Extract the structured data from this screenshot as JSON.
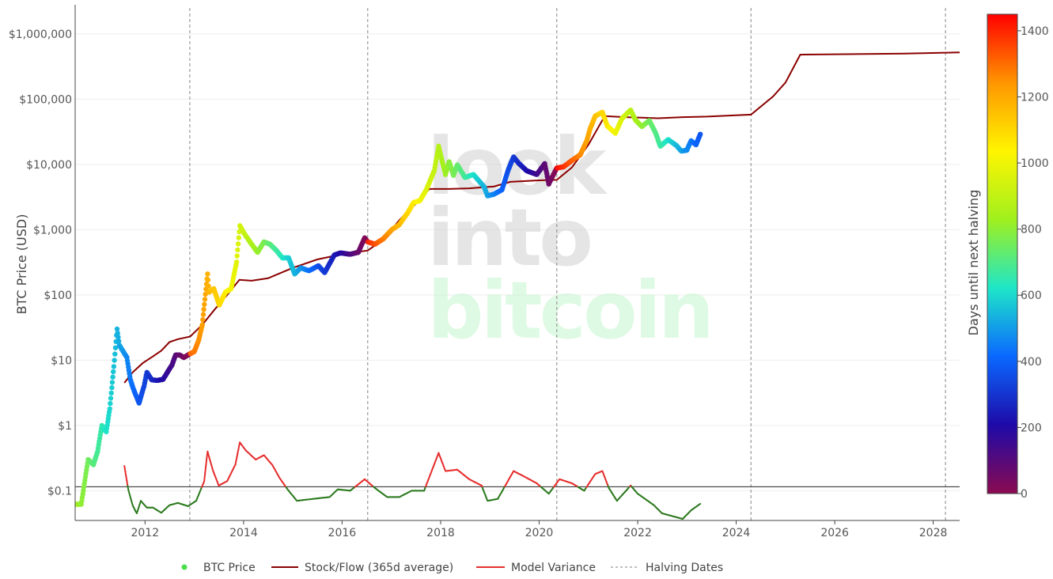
{
  "chart_data": {
    "type": "scatter",
    "ylabel": "BTC Price (USD)",
    "y_scale": "log",
    "ylim": [
      0.035,
      2500000
    ],
    "xlim": [
      "2010-08-01",
      "2028-07-15"
    ],
    "x_ticks": [
      "2012",
      "2014",
      "2016",
      "2018",
      "2020",
      "2022",
      "2024",
      "2026",
      "2028"
    ],
    "y_ticks": [
      {
        "value": 1000000,
        "label": "$1,000,000"
      },
      {
        "value": 100000,
        "label": "$100,000"
      },
      {
        "value": 10000,
        "label": "$10,000"
      },
      {
        "value": 1000,
        "label": "$1,000"
      },
      {
        "value": 100,
        "label": "$100"
      },
      {
        "value": 10,
        "label": "$10"
      },
      {
        "value": 1,
        "label": "$1"
      },
      {
        "value": 0.1,
        "label": "$0.1"
      }
    ],
    "reference_line": 0.115,
    "watermark": [
      "look",
      "into",
      "bitcoin"
    ],
    "colorbar": {
      "title": "Days until next halving",
      "min": 0,
      "max": 1450,
      "ticks": [
        "1400",
        "1200",
        "1000",
        "800",
        "600",
        "400",
        "200",
        "0"
      ],
      "tick_values": [
        1400,
        1200,
        1000,
        800,
        600,
        400,
        200,
        0
      ],
      "colors": [
        "#8b0a50",
        "#1e0aa8",
        "#0a68ff",
        "#1ee6c8",
        "#a0f01e",
        "#fff500",
        "#ff9600",
        "#ff0000"
      ]
    },
    "halving_dates": [
      "2012-11-28",
      "2016-07-09",
      "2020-05-11",
      "2024-04-20",
      "2028-04-01"
    ],
    "series": [
      {
        "name": "BTC Price",
        "color_by": "days_until_next_halving",
        "points": [
          [
            "2010-08-01",
            0.062
          ],
          [
            "2010-09-15",
            0.062
          ],
          [
            "2010-10-01",
            0.1
          ],
          [
            "2010-11-05",
            0.3
          ],
          [
            "2010-12-15",
            0.25
          ],
          [
            "2011-01-15",
            0.4
          ],
          [
            "2011-02-15",
            1.0
          ],
          [
            "2011-03-20",
            0.8
          ],
          [
            "2011-04-15",
            1.8
          ],
          [
            "2011-05-15",
            8.0
          ],
          [
            "2011-06-08",
            30.0
          ],
          [
            "2011-06-25",
            17.0
          ],
          [
            "2011-07-20",
            14.0
          ],
          [
            "2011-08-20",
            11.0
          ],
          [
            "2011-09-15",
            5.0
          ],
          [
            "2011-10-10",
            3.5
          ],
          [
            "2011-11-18",
            2.2
          ],
          [
            "2011-12-25",
            4.0
          ],
          [
            "2012-01-15",
            6.5
          ],
          [
            "2012-02-20",
            5.0
          ],
          [
            "2012-04-01",
            4.9
          ],
          [
            "2012-05-15",
            5.1
          ],
          [
            "2012-06-15",
            6.5
          ],
          [
            "2012-07-20",
            8.5
          ],
          [
            "2012-08-15",
            12.0
          ],
          [
            "2012-09-15",
            12.0
          ],
          [
            "2012-10-15",
            11.0
          ],
          [
            "2012-11-28",
            12.5
          ],
          [
            "2012-12-31",
            13.5
          ],
          [
            "2013-02-01",
            20.0
          ],
          [
            "2013-03-01",
            35.0
          ],
          [
            "2013-04-09",
            210.0
          ],
          [
            "2013-04-20",
            110.0
          ],
          [
            "2013-05-25",
            125.0
          ],
          [
            "2013-07-05",
            70.0
          ],
          [
            "2013-08-20",
            110.0
          ],
          [
            "2013-10-01",
            125.0
          ],
          [
            "2013-11-10",
            320.0
          ],
          [
            "2013-12-04",
            1150.0
          ],
          [
            "2014-01-10",
            850.0
          ],
          [
            "2014-03-01",
            600.0
          ],
          [
            "2014-04-15",
            450.0
          ],
          [
            "2014-06-01",
            650.0
          ],
          [
            "2014-07-15",
            600.0
          ],
          [
            "2014-09-01",
            480.0
          ],
          [
            "2014-10-15",
            370.0
          ],
          [
            "2014-12-01",
            370.0
          ],
          [
            "2015-01-15",
            210.0
          ],
          [
            "2015-03-01",
            260.0
          ],
          [
            "2015-05-01",
            235.0
          ],
          [
            "2015-07-10",
            280.0
          ],
          [
            "2015-08-25",
            220.0
          ],
          [
            "2015-11-05",
            410.0
          ],
          [
            "2015-12-20",
            440.0
          ],
          [
            "2016-03-01",
            420.0
          ],
          [
            "2016-05-01",
            450.0
          ],
          [
            "2016-06-17",
            750.0
          ],
          [
            "2016-07-09",
            650.0
          ],
          [
            "2016-09-01",
            600.0
          ],
          [
            "2016-11-01",
            720.0
          ],
          [
            "2017-01-05",
            1000.0
          ],
          [
            "2017-03-01",
            1200.0
          ],
          [
            "2017-05-01",
            1800.0
          ],
          [
            "2017-06-15",
            2600.0
          ],
          [
            "2017-08-01",
            2800.0
          ],
          [
            "2017-09-15",
            4000.0
          ],
          [
            "2017-11-15",
            8000.0
          ],
          [
            "2017-12-17",
            19000.0
          ],
          [
            "2018-02-06",
            7000.0
          ],
          [
            "2018-03-05",
            11000.0
          ],
          [
            "2018-04-06",
            6800.0
          ],
          [
            "2018-05-05",
            9800.0
          ],
          [
            "2018-07-01",
            6300.0
          ],
          [
            "2018-09-01",
            7000.0
          ],
          [
            "2018-11-20",
            4500.0
          ],
          [
            "2018-12-15",
            3300.0
          ],
          [
            "2019-02-01",
            3500.0
          ],
          [
            "2019-04-01",
            4100.0
          ],
          [
            "2019-05-15",
            8000.0
          ],
          [
            "2019-06-26",
            13000.0
          ],
          [
            "2019-08-01",
            10500.0
          ],
          [
            "2019-10-01",
            8000.0
          ],
          [
            "2019-12-15",
            7000.0
          ],
          [
            "2020-02-12",
            10300.0
          ],
          [
            "2020-03-13",
            5000.0
          ],
          [
            "2020-05-11",
            8800.0
          ],
          [
            "2020-07-01",
            9200.0
          ],
          [
            "2020-09-01",
            11500.0
          ],
          [
            "2020-11-01",
            14000.0
          ],
          [
            "2020-12-20",
            23000.0
          ],
          [
            "2021-01-15",
            36000.0
          ],
          [
            "2021-02-20",
            55000.0
          ],
          [
            "2021-04-14",
            63000.0
          ],
          [
            "2021-05-20",
            39000.0
          ],
          [
            "2021-07-20",
            30000.0
          ],
          [
            "2021-09-05",
            50000.0
          ],
          [
            "2021-11-10",
            68000.0
          ],
          [
            "2021-12-15",
            48000.0
          ],
          [
            "2022-02-01",
            38000.0
          ],
          [
            "2022-03-28",
            47000.0
          ],
          [
            "2022-05-15",
            30000.0
          ],
          [
            "2022-06-18",
            19000.0
          ],
          [
            "2022-08-15",
            24000.0
          ],
          [
            "2022-10-15",
            19500.0
          ],
          [
            "2022-11-21",
            16000.0
          ],
          [
            "2023-01-01",
            16500.0
          ],
          [
            "2023-02-01",
            23000.0
          ],
          [
            "2023-03-10",
            20000.0
          ],
          [
            "2023-04-10",
            29000.0
          ]
        ]
      },
      {
        "name": "Stock/Flow (365d average)",
        "color": "#8b0000",
        "points": [
          [
            "2011-08-01",
            4.5
          ],
          [
            "2011-10-01",
            6.5
          ],
          [
            "2011-12-15",
            9.0
          ],
          [
            "2012-03-01",
            11.5
          ],
          [
            "2012-05-01",
            14.0
          ],
          [
            "2012-07-01",
            19.0
          ],
          [
            "2012-09-01",
            21.0
          ],
          [
            "2012-12-01",
            23.0
          ],
          [
            "2013-03-01",
            35.0
          ],
          [
            "2013-06-01",
            60.0
          ],
          [
            "2013-09-01",
            100.0
          ],
          [
            "2013-12-01",
            170.0
          ],
          [
            "2014-03-01",
            165.0
          ],
          [
            "2014-07-01",
            180.0
          ],
          [
            "2015-01-01",
            260.0
          ],
          [
            "2015-07-01",
            350.0
          ],
          [
            "2016-01-01",
            420.0
          ],
          [
            "2016-07-09",
            480.0
          ],
          [
            "2016-11-01",
            700.0
          ],
          [
            "2017-03-01",
            1400.0
          ],
          [
            "2017-07-01",
            2500.0
          ],
          [
            "2017-10-10",
            4200.0
          ],
          [
            "2018-03-01",
            4200.0
          ],
          [
            "2018-08-01",
            4300.0
          ],
          [
            "2019-02-01",
            4600.0
          ],
          [
            "2019-06-01",
            5400.0
          ],
          [
            "2020-01-01",
            5700.0
          ],
          [
            "2020-05-11",
            5800.0
          ],
          [
            "2020-09-01",
            9000.0
          ],
          [
            "2021-01-01",
            20000.0
          ],
          [
            "2021-05-01",
            55000.0
          ],
          [
            "2021-10-01",
            53000.0
          ],
          [
            "2022-02-01",
            52000.0
          ],
          [
            "2022-06-01",
            51000.0
          ],
          [
            "2022-12-01",
            53000.0
          ],
          [
            "2023-06-01",
            54000.0
          ],
          [
            "2024-04-20",
            58000.0
          ],
          [
            "2024-10-01",
            110000.0
          ],
          [
            "2025-01-01",
            180000.0
          ],
          [
            "2025-04-20",
            480000.0
          ],
          [
            "2026-06-01",
            490000.0
          ],
          [
            "2027-06-01",
            500000.0
          ],
          [
            "2028-07-15",
            520000.0
          ]
        ]
      },
      {
        "name": "Model Variance",
        "color_above": "#e62e2e",
        "color_below": "#2d7a1f",
        "points": [
          [
            "2011-08-01",
            0.24
          ],
          [
            "2011-09-01",
            0.1
          ],
          [
            "2011-10-01",
            0.06
          ],
          [
            "2011-11-01",
            0.045
          ],
          [
            "2011-12-01",
            0.07
          ],
          [
            "2012-01-15",
            0.055
          ],
          [
            "2012-03-01",
            0.055
          ],
          [
            "2012-05-01",
            0.046
          ],
          [
            "2012-07-01",
            0.06
          ],
          [
            "2012-09-01",
            0.065
          ],
          [
            "2012-11-15",
            0.058
          ],
          [
            "2013-01-15",
            0.07
          ],
          [
            "2013-03-15",
            0.14
          ],
          [
            "2013-04-09",
            0.4
          ],
          [
            "2013-05-20",
            0.2
          ],
          [
            "2013-07-01",
            0.12
          ],
          [
            "2013-09-01",
            0.14
          ],
          [
            "2013-11-01",
            0.25
          ],
          [
            "2013-12-04",
            0.55
          ],
          [
            "2014-01-15",
            0.42
          ],
          [
            "2014-04-01",
            0.3
          ],
          [
            "2014-06-01",
            0.35
          ],
          [
            "2014-08-01",
            0.25
          ],
          [
            "2014-10-01",
            0.15
          ],
          [
            "2014-12-01",
            0.1
          ],
          [
            "2015-02-01",
            0.07
          ],
          [
            "2015-06-01",
            0.075
          ],
          [
            "2015-10-01",
            0.08
          ],
          [
            "2015-12-01",
            0.105
          ],
          [
            "2016-03-01",
            0.1
          ],
          [
            "2016-06-17",
            0.15
          ],
          [
            "2016-09-01",
            0.11
          ],
          [
            "2016-12-01",
            0.08
          ],
          [
            "2017-03-01",
            0.08
          ],
          [
            "2017-06-01",
            0.1
          ],
          [
            "2017-09-01",
            0.1
          ],
          [
            "2017-12-17",
            0.38
          ],
          [
            "2018-02-06",
            0.2
          ],
          [
            "2018-05-05",
            0.21
          ],
          [
            "2018-08-01",
            0.15
          ],
          [
            "2018-11-01",
            0.12
          ],
          [
            "2018-12-15",
            0.07
          ],
          [
            "2019-03-01",
            0.075
          ],
          [
            "2019-06-26",
            0.2
          ],
          [
            "2019-09-01",
            0.17
          ],
          [
            "2019-12-15",
            0.13
          ],
          [
            "2020-03-13",
            0.09
          ],
          [
            "2020-06-01",
            0.15
          ],
          [
            "2020-09-01",
            0.13
          ],
          [
            "2020-12-01",
            0.1
          ],
          [
            "2021-02-20",
            0.18
          ],
          [
            "2021-04-14",
            0.2
          ],
          [
            "2021-06-01",
            0.11
          ],
          [
            "2021-08-01",
            0.07
          ],
          [
            "2021-11-10",
            0.12
          ],
          [
            "2022-01-01",
            0.09
          ],
          [
            "2022-05-01",
            0.06
          ],
          [
            "2022-07-01",
            0.045
          ],
          [
            "2022-10-01",
            0.04
          ],
          [
            "2022-12-01",
            0.037
          ],
          [
            "2023-02-01",
            0.05
          ],
          [
            "2023-04-10",
            0.063
          ]
        ]
      },
      {
        "name": "Halving Dates",
        "style": "dashed",
        "color": "#999999"
      }
    ]
  }
}
